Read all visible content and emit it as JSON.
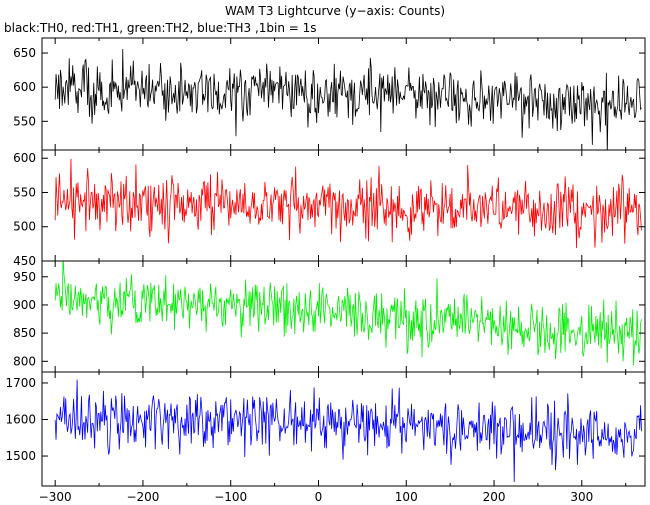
{
  "chart_data": {
    "type": "line",
    "title": "WAM T3 Lightcurve (y−axis: Counts)",
    "subtitle": "black:TH0, red:TH1, green:TH2, blue:TH3 ,1bin = 1s",
    "xlim": [
      -315,
      372
    ],
    "x_ticks": [
      -300,
      -200,
      -100,
      0,
      100,
      200,
      300
    ],
    "x_tick_labels": [
      "−300",
      "−200",
      "−100",
      "0",
      "100",
      "200",
      "300"
    ],
    "grid": false,
    "legend": "none",
    "panels": [
      {
        "series": "TH0",
        "color": "#000000",
        "ylim": [
          508,
          672
        ],
        "y_ticks": [
          550,
          600,
          650
        ],
        "trend": [
          [
            -300,
            595
          ],
          [
            -100,
            592
          ],
          [
            100,
            588
          ],
          [
            365,
            577
          ]
        ],
        "noise_std": 20
      },
      {
        "series": "TH1",
        "color": "#ff0000",
        "ylim": [
          450,
          612
        ],
        "y_ticks": [
          450,
          500,
          550,
          600
        ],
        "trend": [
          [
            -300,
            535
          ],
          [
            -100,
            533
          ],
          [
            100,
            530
          ],
          [
            365,
            522
          ]
        ],
        "noise_std": 21
      },
      {
        "series": "TH2",
        "color": "#00ee00",
        "ylim": [
          781,
          978
        ],
        "y_ticks": [
          800,
          850,
          900,
          950
        ],
        "trend": [
          [
            -300,
            912
          ],
          [
            -100,
            900
          ],
          [
            100,
            880
          ],
          [
            200,
            865
          ],
          [
            365,
            845
          ]
        ],
        "noise_std": 24
      },
      {
        "series": "TH3",
        "color": "#0000ff",
        "ylim": [
          1418,
          1730
        ],
        "y_ticks": [
          1500,
          1600,
          1700
        ],
        "trend": [
          [
            -300,
            1605
          ],
          [
            -100,
            1600
          ],
          [
            100,
            1588
          ],
          [
            365,
            1553
          ]
        ],
        "noise_std": 38
      }
    ]
  }
}
